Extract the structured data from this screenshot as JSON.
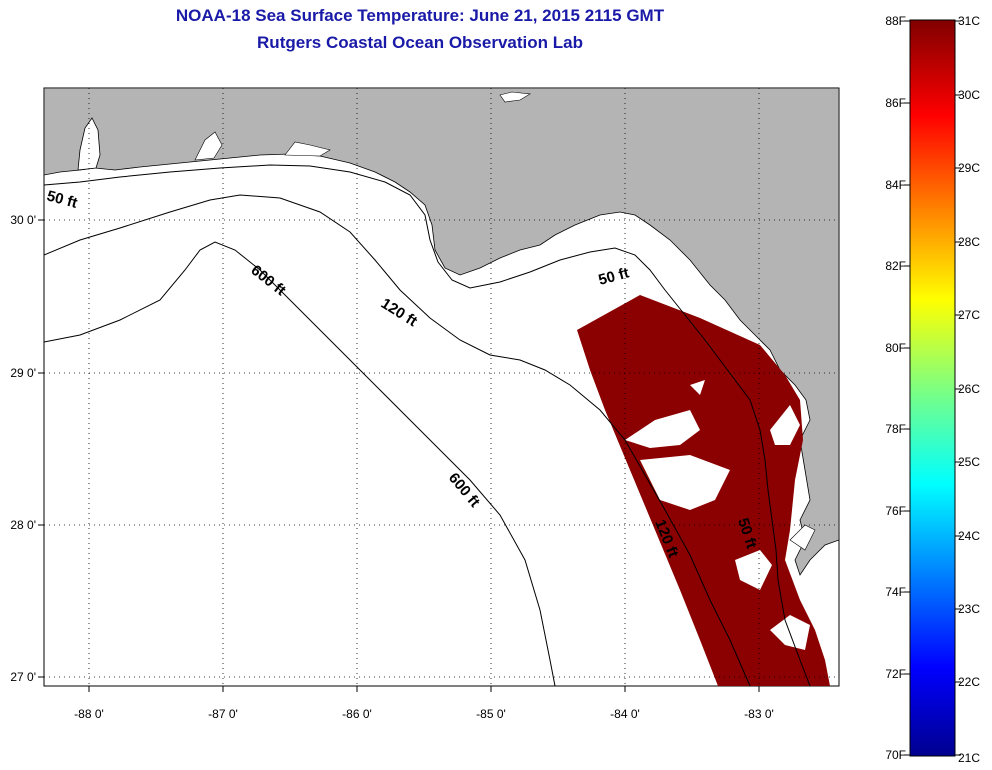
{
  "title_line1": "NOAA-18 Sea Surface Temperature:  June 21, 2015 2115 GMT",
  "title_line2": "Rutgers Coastal Ocean Observation Lab",
  "colors": {
    "land": "#b4b4b4",
    "sst": "#8b0000",
    "title": "#1a1aa8"
  },
  "map": {
    "lon_ticks": [
      "-88 0'",
      "-87 0'",
      "-86 0'",
      "-85 0'",
      "-84 0'",
      "-83 0'"
    ],
    "lat_ticks": [
      "30 0'",
      "29 0'",
      "28 0'",
      "27 0'"
    ],
    "contour_labels": [
      "50 ft",
      "600 ft",
      "120 ft",
      "50 ft",
      "600 ft",
      "120 ft",
      "50 ft"
    ]
  },
  "colorbar": {
    "f_labels": [
      "88F",
      "86F",
      "84F",
      "82F",
      "80F",
      "78F",
      "76F",
      "74F",
      "72F",
      "70F"
    ],
    "c_labels": [
      "31C",
      "30C",
      "29C",
      "28C",
      "27C",
      "26C",
      "25C",
      "24C",
      "23C",
      "22C",
      "21C"
    ]
  }
}
